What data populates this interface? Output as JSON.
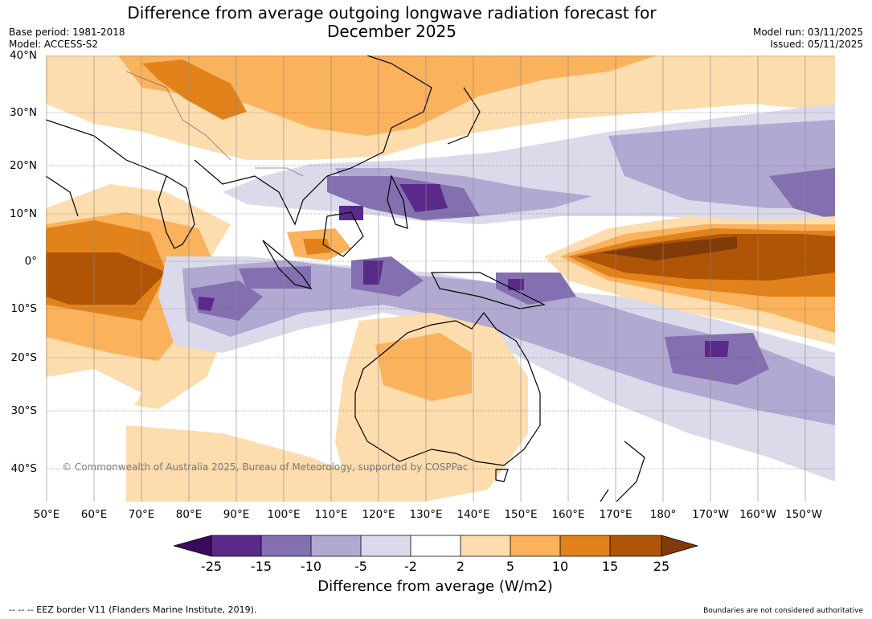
{
  "header": {
    "title_line1": "Difference from average outgoing longwave radiation forecast for",
    "title_line2": "December 2025",
    "base_period": "Base period: 1981-2018",
    "model": "Model: ACCESS-S2",
    "model_run": "Model run: 03/11/2025",
    "issued": "Issued: 05/11/2025"
  },
  "map": {
    "lat_labels": [
      "40°N",
      "30°N",
      "20°N",
      "10°N",
      "0°",
      "10°S",
      "20°S",
      "30°S",
      "40°S"
    ],
    "lon_labels": [
      "50°E",
      "60°E",
      "70°E",
      "80°E",
      "90°E",
      "100°E",
      "110°E",
      "120°E",
      "130°E",
      "140°E",
      "150°E",
      "160°E",
      "170°E",
      "180°",
      "170°W",
      "160°W",
      "150°W"
    ],
    "credit": "© Commonwealth of Australia 2025, Bureau of Meteorology, supported by COSPPac"
  },
  "legend": {
    "title": "Difference from average (W/m2)",
    "ticks": [
      "-25",
      "-15",
      "-10",
      "-5",
      "-2",
      "2",
      "5",
      "10",
      "15",
      "25"
    ],
    "colors": [
      "#3a0a5c",
      "#5a2a8a",
      "#8470b0",
      "#b1a9d2",
      "#dadaeb",
      "#ffffff",
      "#fddcad",
      "#fbb25c",
      "#e2821a",
      "#b05506",
      "#7f3b08"
    ]
  },
  "footer": {
    "eez": "--  --  -- EEZ border V11 (Flanders Marine Institute, 2019).",
    "disclaimer": "Boundaries are not considered authoritative"
  }
}
